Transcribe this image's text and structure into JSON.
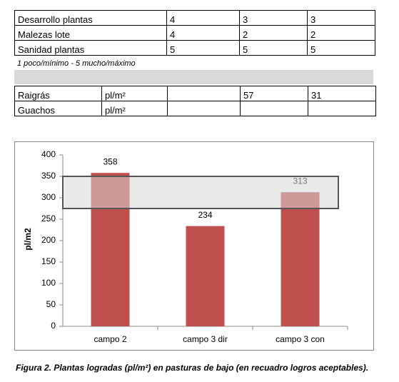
{
  "table1": {
    "rows": [
      {
        "label": "Desarrollo plantas",
        "c2": 4,
        "c3dir": 3,
        "c3con": 3
      },
      {
        "label": "Malezas lote",
        "c2": 4,
        "c3dir": 2,
        "c3con": 2
      },
      {
        "label": "Sanidad plantas",
        "c2": 5,
        "c3dir": 5,
        "c3con": 5
      }
    ]
  },
  "note": "1 poco/mínimo  - 5  mucho/máximo",
  "table2": {
    "rows": [
      {
        "label": "Raigrás",
        "unit": "pl/m²",
        "c3dir": 57,
        "c3con": 31
      },
      {
        "label": "Guachos",
        "unit": "pl/m²"
      }
    ]
  },
  "chart_data": {
    "type": "bar",
    "y_label": "pl/m2",
    "categories": [
      "campo 2",
      "campo 3 dir",
      "campo 3 con"
    ],
    "values": [
      358,
      234,
      313
    ],
    "color": "#c0504d",
    "ylim": [
      0,
      400
    ],
    "yticks": [
      0,
      50,
      100,
      150,
      200,
      250,
      300,
      350,
      400
    ],
    "highlight_band": [
      275,
      350
    ]
  },
  "caption": "Figura 2. Plantas logradas (pl/m²) en pasturas de bajo (en recuadro logros aceptables)."
}
